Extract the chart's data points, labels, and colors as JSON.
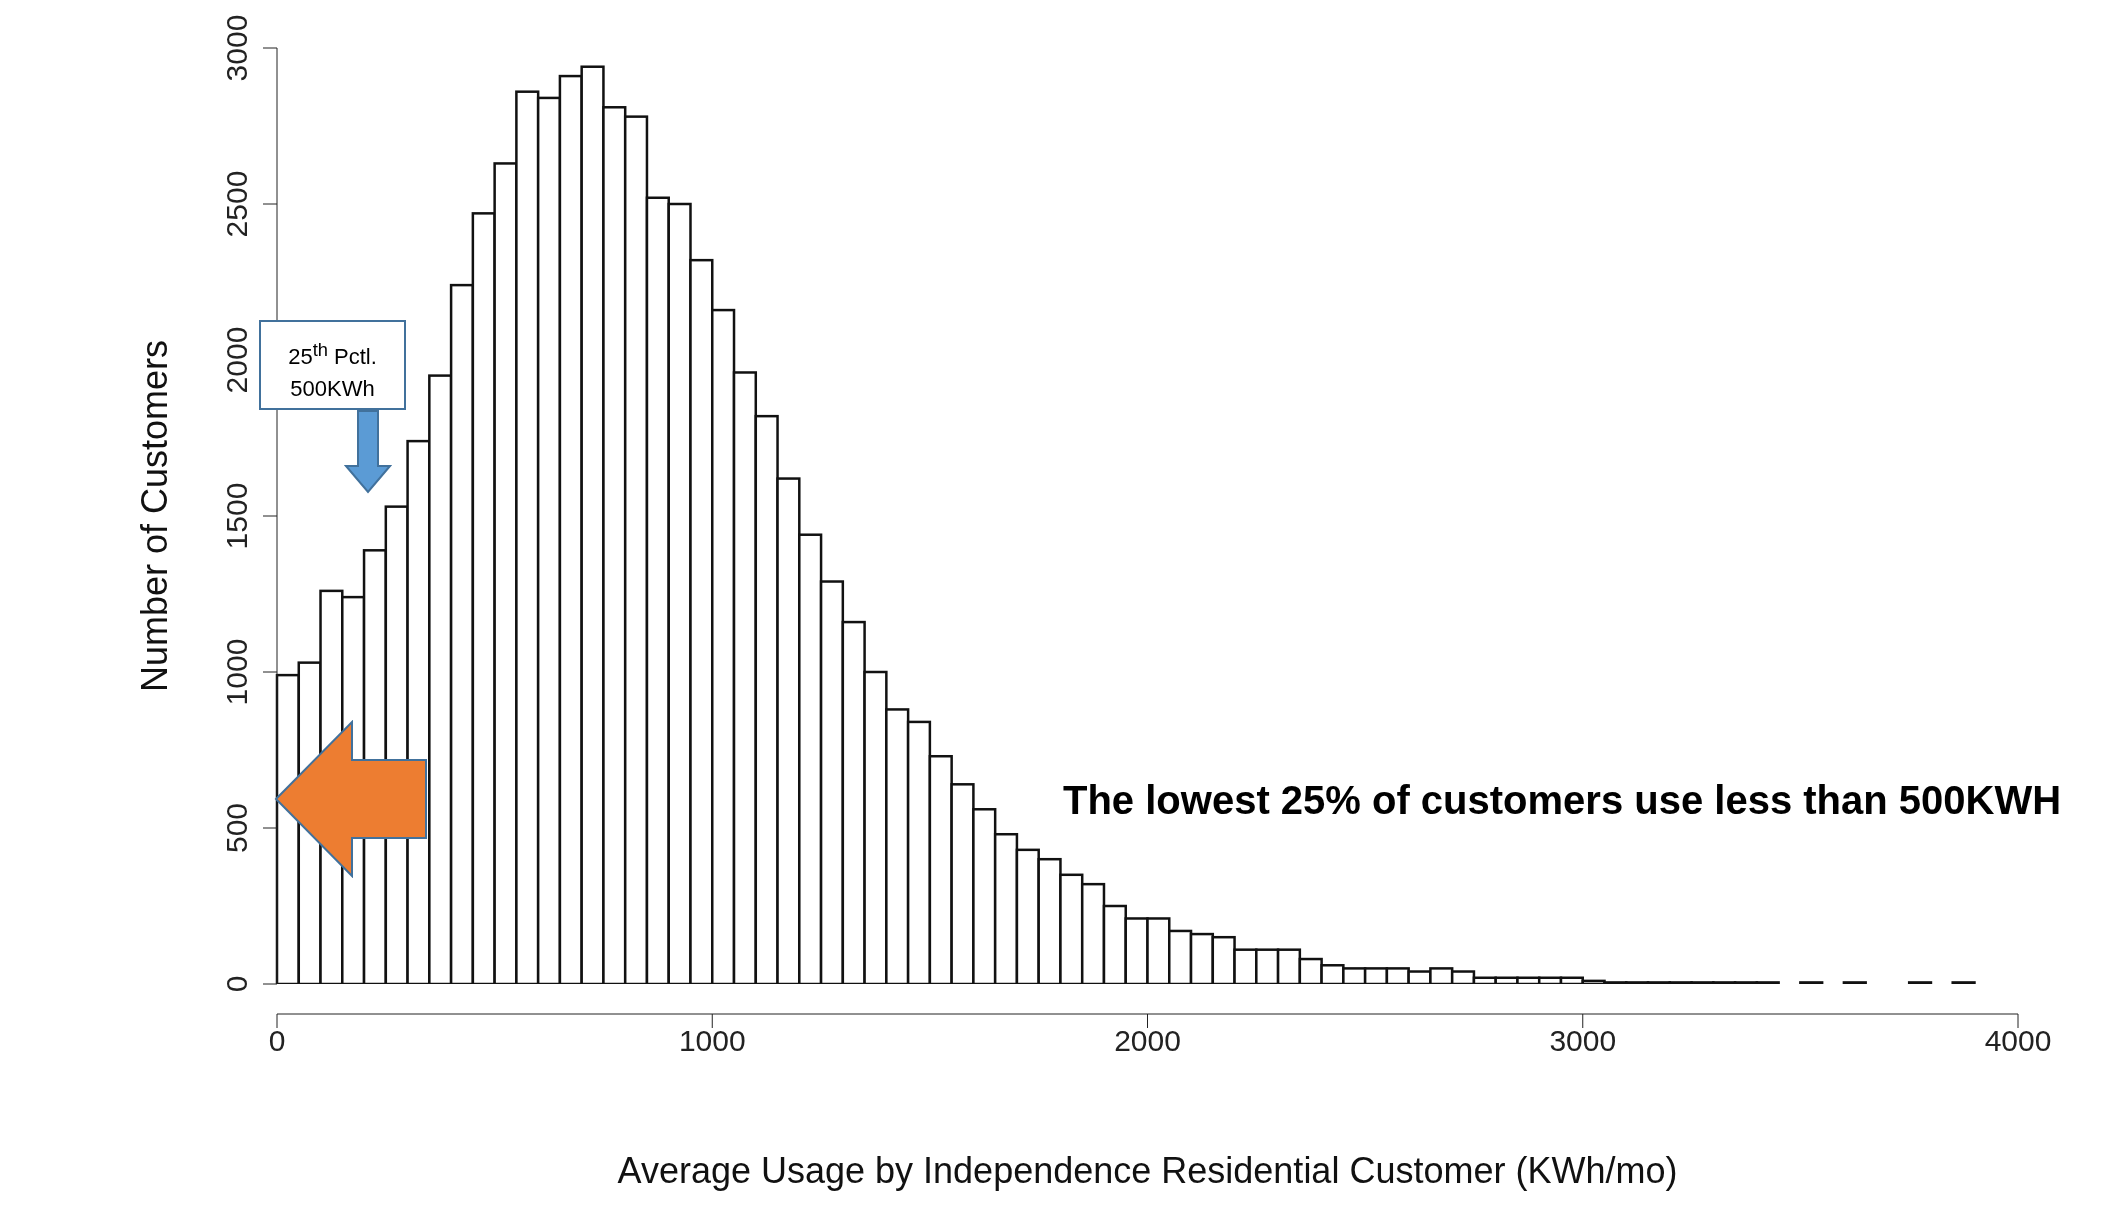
{
  "chart_data": {
    "type": "histogram",
    "xlabel": "Average Usage by Independence Residential Customer (KWh/mo)",
    "ylabel": "Number of Customers",
    "bins": [
      0,
      50,
      100,
      150,
      200,
      250,
      300,
      350,
      400,
      450,
      500,
      550,
      600,
      650,
      700,
      750,
      800,
      850,
      900,
      950,
      1000,
      1050,
      1100,
      1150,
      1200,
      1250,
      1300,
      1350,
      1400,
      1450,
      1500,
      1550,
      1600,
      1650,
      1700,
      1750,
      1800,
      1850,
      1900,
      1950,
      2000,
      2050,
      2100,
      2150,
      2200,
      2250,
      2300,
      2350,
      2400,
      2450,
      2500,
      2550,
      2600,
      2650,
      2700,
      2750,
      2800,
      2850,
      2900,
      2950,
      3000,
      3050,
      3100,
      3150,
      3200,
      3250,
      3300,
      3350,
      3400,
      3450,
      3500,
      3550,
      3600,
      3650,
      3700,
      3750,
      3800,
      3850,
      3900
    ],
    "values": [
      990,
      1030,
      1260,
      1240,
      1390,
      1530,
      1740,
      1950,
      2240,
      2470,
      2630,
      2860,
      2840,
      2910,
      2940,
      2810,
      2780,
      2520,
      2500,
      2320,
      2160,
      1960,
      1820,
      1620,
      1440,
      1290,
      1160,
      1000,
      880,
      840,
      730,
      640,
      560,
      480,
      430,
      400,
      350,
      320,
      250,
      210,
      210,
      170,
      160,
      150,
      110,
      110,
      110,
      80,
      60,
      50,
      50,
      50,
      40,
      50,
      40,
      20,
      20,
      20,
      20,
      20,
      10,
      5,
      5,
      5,
      5,
      5,
      5,
      5,
      5,
      0,
      5,
      0,
      5,
      0,
      0,
      5,
      0,
      5
    ],
    "color": "#ffffff",
    "xlim": [
      0,
      4000
    ],
    "xticks": [
      0,
      1000,
      2000,
      3000,
      4000
    ],
    "ylim": [
      0,
      3000
    ],
    "yticks": [
      0,
      500,
      1000,
      1500,
      2000,
      2500,
      3000
    ],
    "grid": false,
    "legend": false,
    "annotations": [
      "25$^{th}$ Pctl. 500KWh",
      "The lowest 25% of customers use less than 500KWH"
    ]
  }
}
